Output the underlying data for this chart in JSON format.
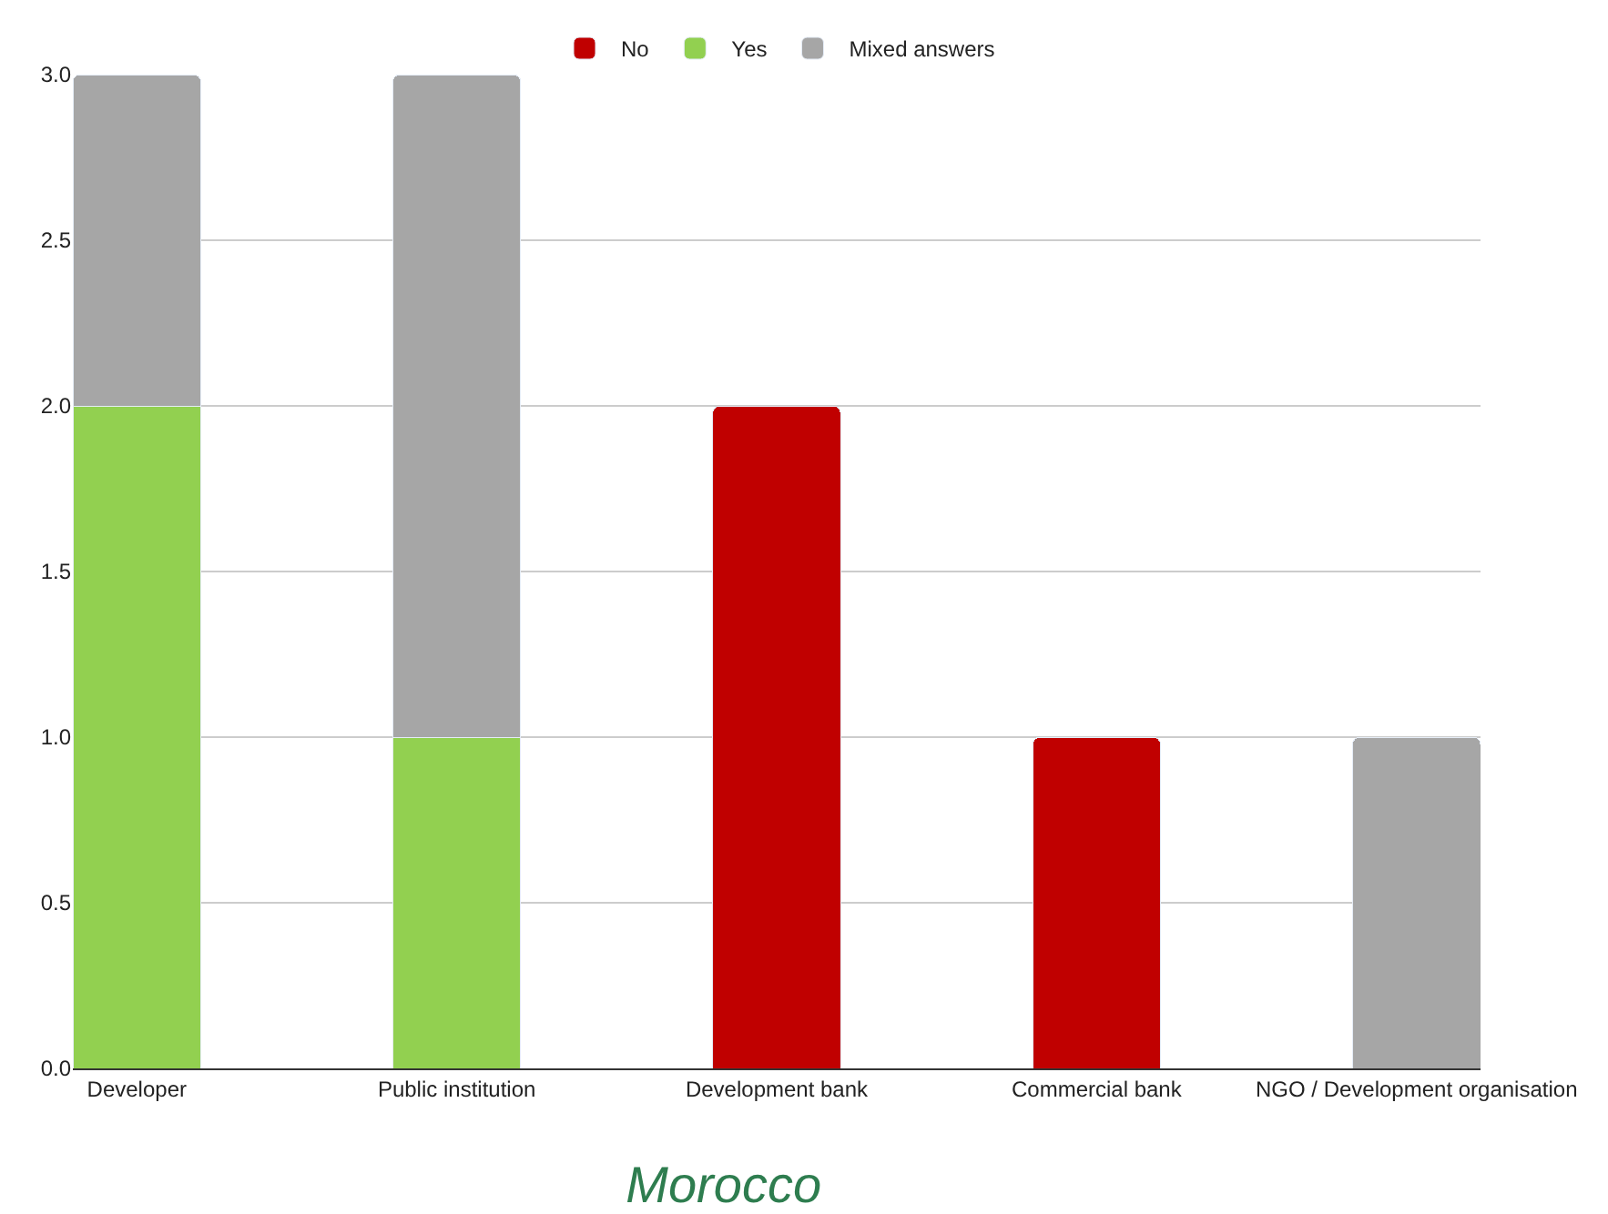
{
  "chart_data": {
    "type": "bar",
    "stacked": true,
    "title": "Morocco",
    "categories": [
      "Developer",
      "Public institution",
      "Development bank",
      "Commercial bank",
      "NGO / Development organisation"
    ],
    "series": [
      {
        "name": "No",
        "color": "#c00000",
        "values": [
          null,
          null,
          2,
          1,
          null
        ]
      },
      {
        "name": "Yes",
        "color": "#92d050",
        "values": [
          2,
          1,
          null,
          null,
          null
        ]
      },
      {
        "name": "Mixed answers",
        "color": "#a6a6a6",
        "values": [
          1,
          2,
          null,
          null,
          1
        ]
      }
    ],
    "ylim": [
      0,
      3
    ],
    "yticks": [
      {
        "value": 0,
        "label": "0.0"
      },
      {
        "value": 0.5,
        "label": "0.5"
      },
      {
        "value": 1,
        "label": "1.0"
      },
      {
        "value": 1.5,
        "label": "1.5"
      },
      {
        "value": 2,
        "label": "2.0"
      },
      {
        "value": 2.5,
        "label": "2.5"
      },
      {
        "value": 3,
        "label": "3.0"
      }
    ],
    "grid": "y",
    "legend": "top"
  }
}
